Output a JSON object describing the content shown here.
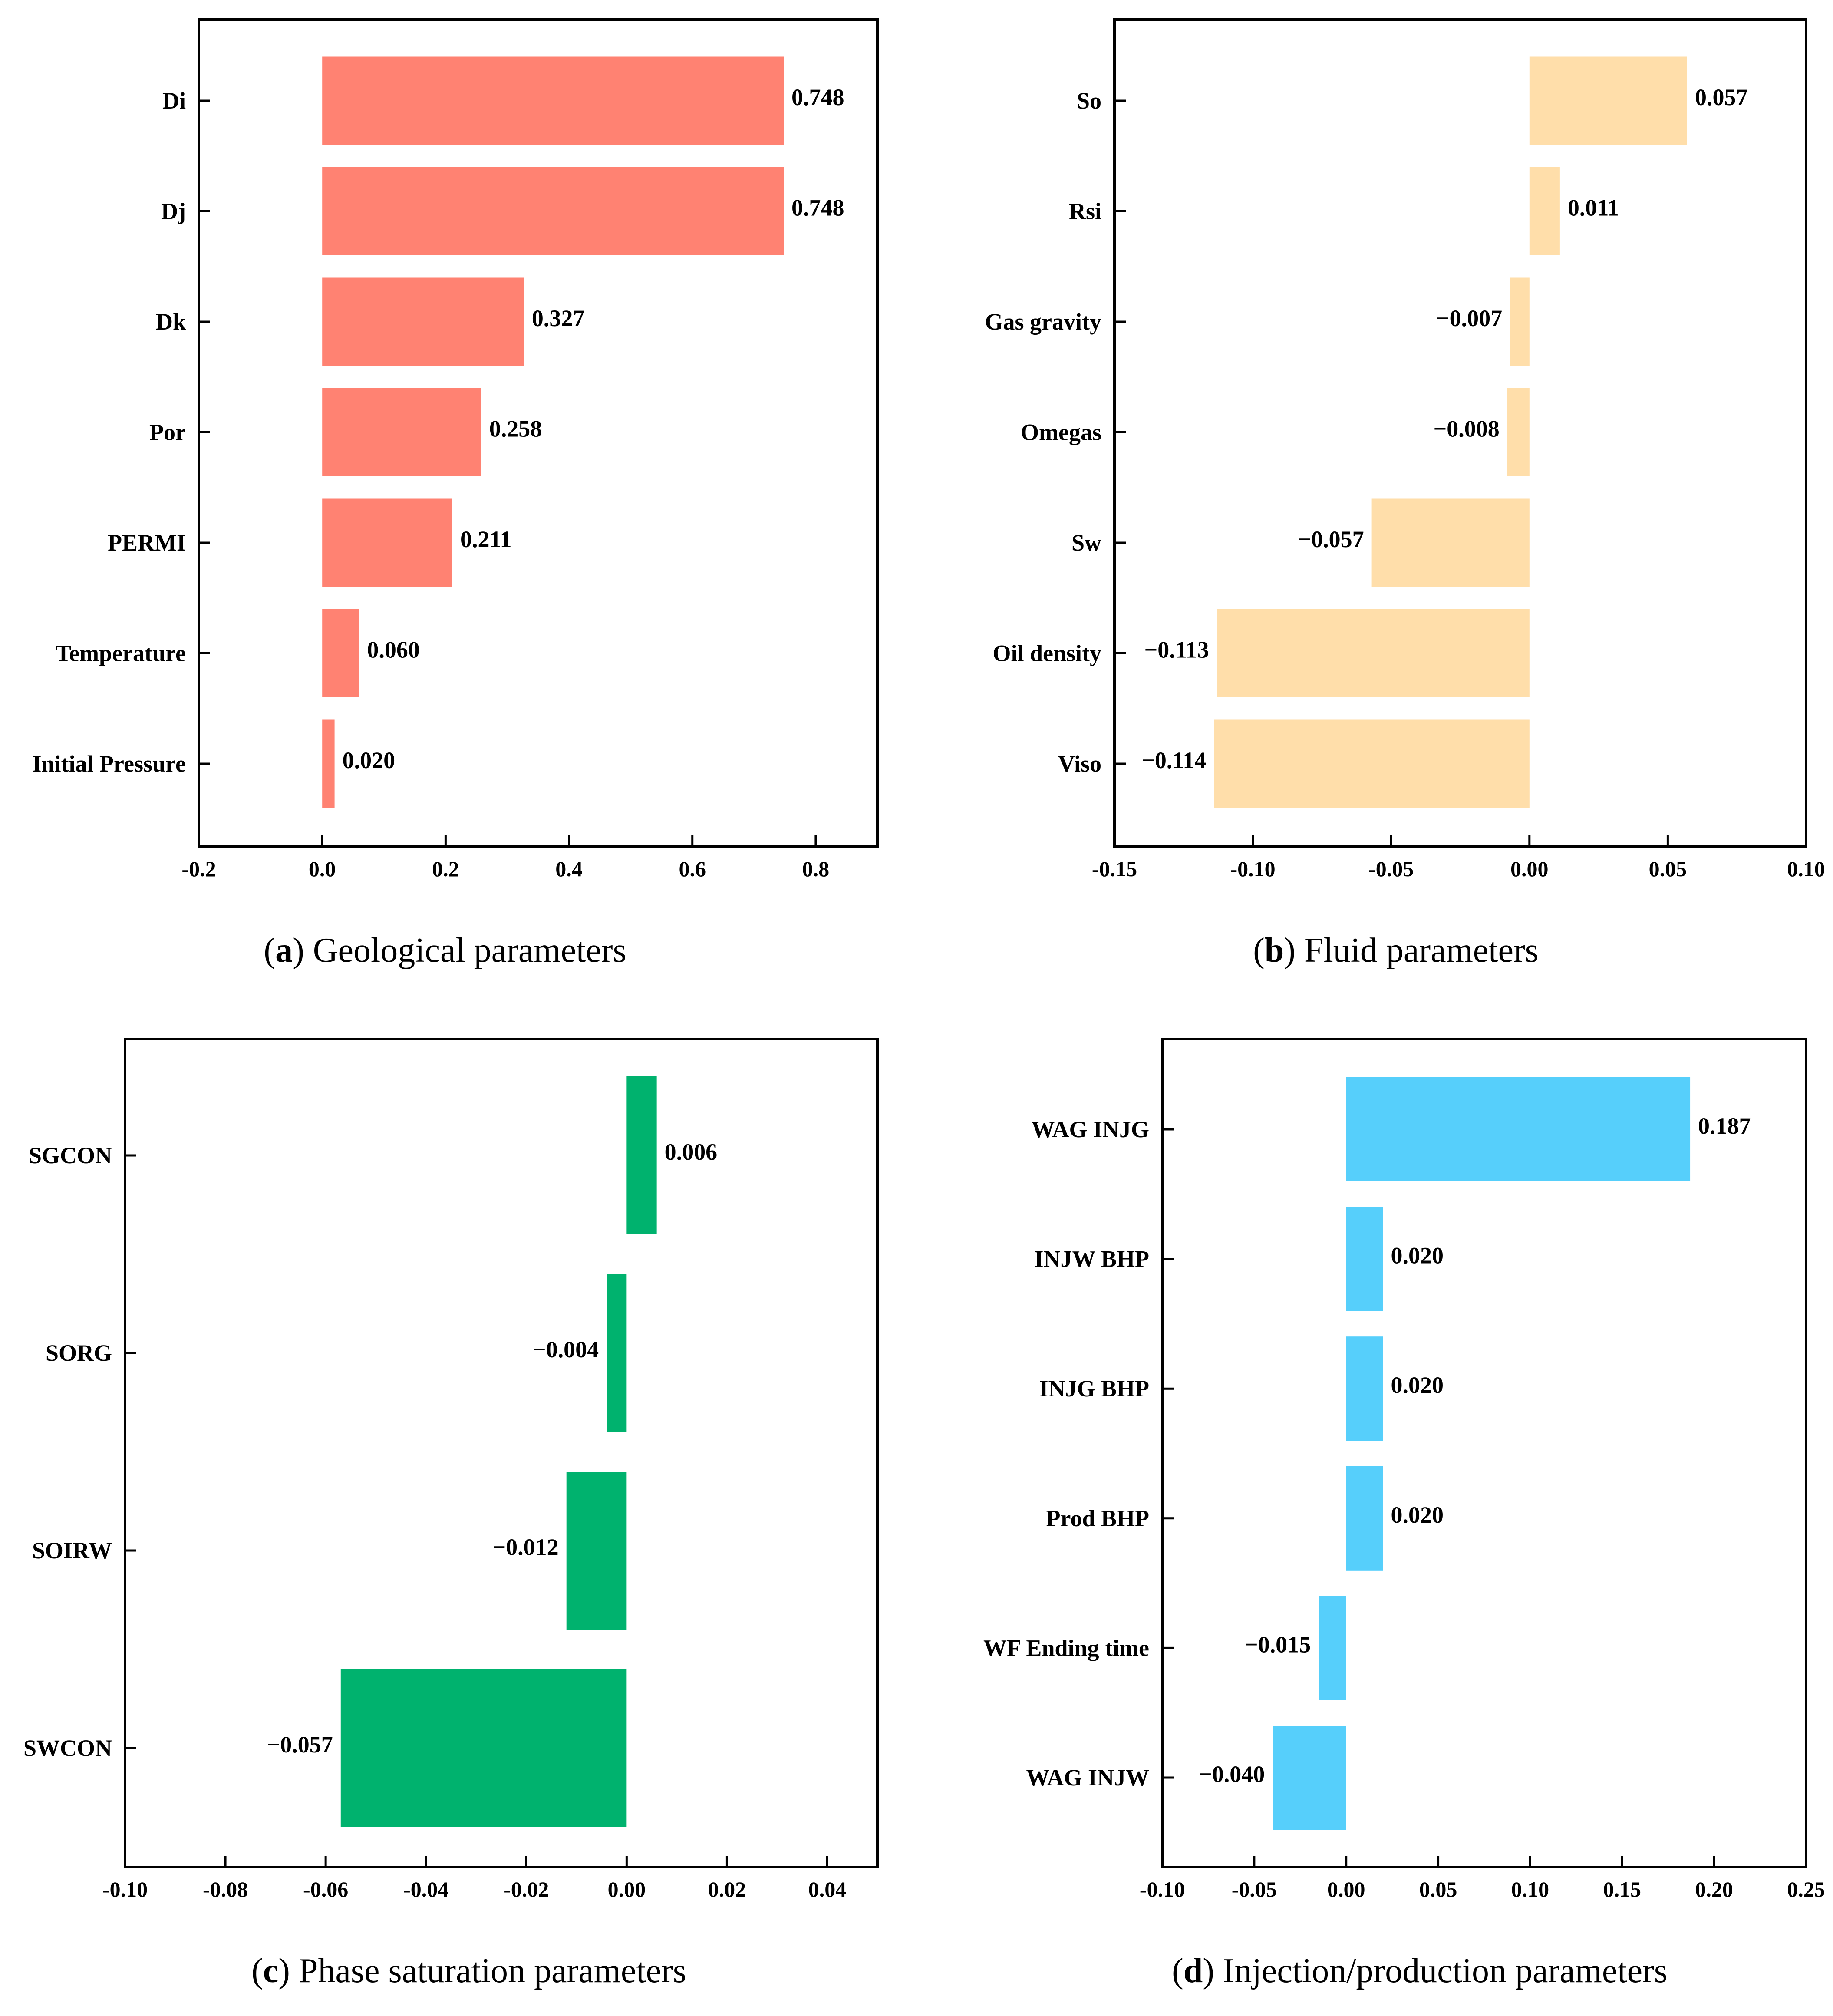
{
  "chart_data": [
    {
      "id": "a",
      "type": "bar",
      "orientation": "horizontal",
      "caption_letter": "a",
      "caption_text": "Geological parameters",
      "categories": [
        "Di",
        "Dj",
        "Dk",
        "Por",
        "PERMI",
        "Temperature",
        "Initial Pressure"
      ],
      "values": [
        0.748,
        0.748,
        0.327,
        0.258,
        0.211,
        0.06,
        0.02
      ],
      "value_labels": [
        "0.748",
        "0.748",
        "0.327",
        "0.258",
        "0.211",
        "0.060",
        "0.020"
      ],
      "xlim": [
        -0.2,
        0.9
      ],
      "xticks": [
        -0.2,
        0.0,
        0.2,
        0.4,
        0.6,
        0.8
      ],
      "xtick_labels": [
        "-0.2",
        "0.0",
        "0.2",
        "0.4",
        "0.6",
        "0.8"
      ],
      "color": "#FF8272",
      "grid": false
    },
    {
      "id": "b",
      "type": "bar",
      "orientation": "horizontal",
      "caption_letter": "b",
      "caption_text": "Fluid parameters",
      "categories": [
        "So",
        "Rsi",
        "Gas gravity",
        "Omegas",
        "Sw",
        "Oil density",
        "Viso"
      ],
      "values": [
        0.057,
        0.011,
        -0.007,
        -0.008,
        -0.057,
        -0.113,
        -0.114
      ],
      "value_labels": [
        "0.057",
        "0.011",
        "−0.007",
        "−0.008",
        "−0.057",
        "−0.113",
        "−0.114"
      ],
      "xlim": [
        -0.15,
        0.1
      ],
      "xticks": [
        -0.15,
        -0.1,
        -0.05,
        0.0,
        0.05,
        0.1
      ],
      "xtick_labels": [
        "-0.15",
        "-0.10",
        "-0.05",
        "0.00",
        "0.05",
        "0.10"
      ],
      "color": "#FFDEAA",
      "grid": false
    },
    {
      "id": "c",
      "type": "bar",
      "orientation": "horizontal",
      "caption_letter": "c",
      "caption_text": "Phase saturation parameters",
      "categories": [
        "SGCON",
        "SORG",
        "SOIRW",
        "SWCON"
      ],
      "values": [
        0.006,
        -0.004,
        -0.012,
        -0.057
      ],
      "value_labels": [
        "0.006",
        "−0.004",
        "−0.012",
        "−0.057"
      ],
      "xlim": [
        -0.1,
        0.05
      ],
      "xticks": [
        -0.1,
        -0.08,
        -0.06,
        -0.04,
        -0.02,
        0.0,
        0.02,
        0.04
      ],
      "xtick_labels": [
        "-0.10",
        "-0.08",
        "-0.06",
        "-0.04",
        "-0.02",
        "0.00",
        "0.02",
        "0.04"
      ],
      "color": "#00B26E",
      "grid": false
    },
    {
      "id": "d",
      "type": "bar",
      "orientation": "horizontal",
      "caption_letter": "d",
      "caption_text": "Injection/production parameters",
      "categories": [
        "WAG INJG",
        "INJW BHP",
        "INJG BHP",
        "Prod BHP",
        "WF Ending time",
        "WAG INJW"
      ],
      "values": [
        0.187,
        0.02,
        0.02,
        0.02,
        -0.015,
        -0.04
      ],
      "value_labels": [
        "0.187",
        "0.020",
        "0.020",
        "0.020",
        "−0.015",
        "−0.040"
      ],
      "xlim": [
        -0.1,
        0.25
      ],
      "xticks": [
        -0.1,
        -0.05,
        0.0,
        0.05,
        0.1,
        0.15,
        0.2,
        0.25
      ],
      "xtick_labels": [
        "-0.10",
        "-0.05",
        "0.00",
        "0.05",
        "0.10",
        "0.15",
        "0.20",
        "0.25"
      ],
      "color": "#56CFFB",
      "grid": false
    }
  ]
}
